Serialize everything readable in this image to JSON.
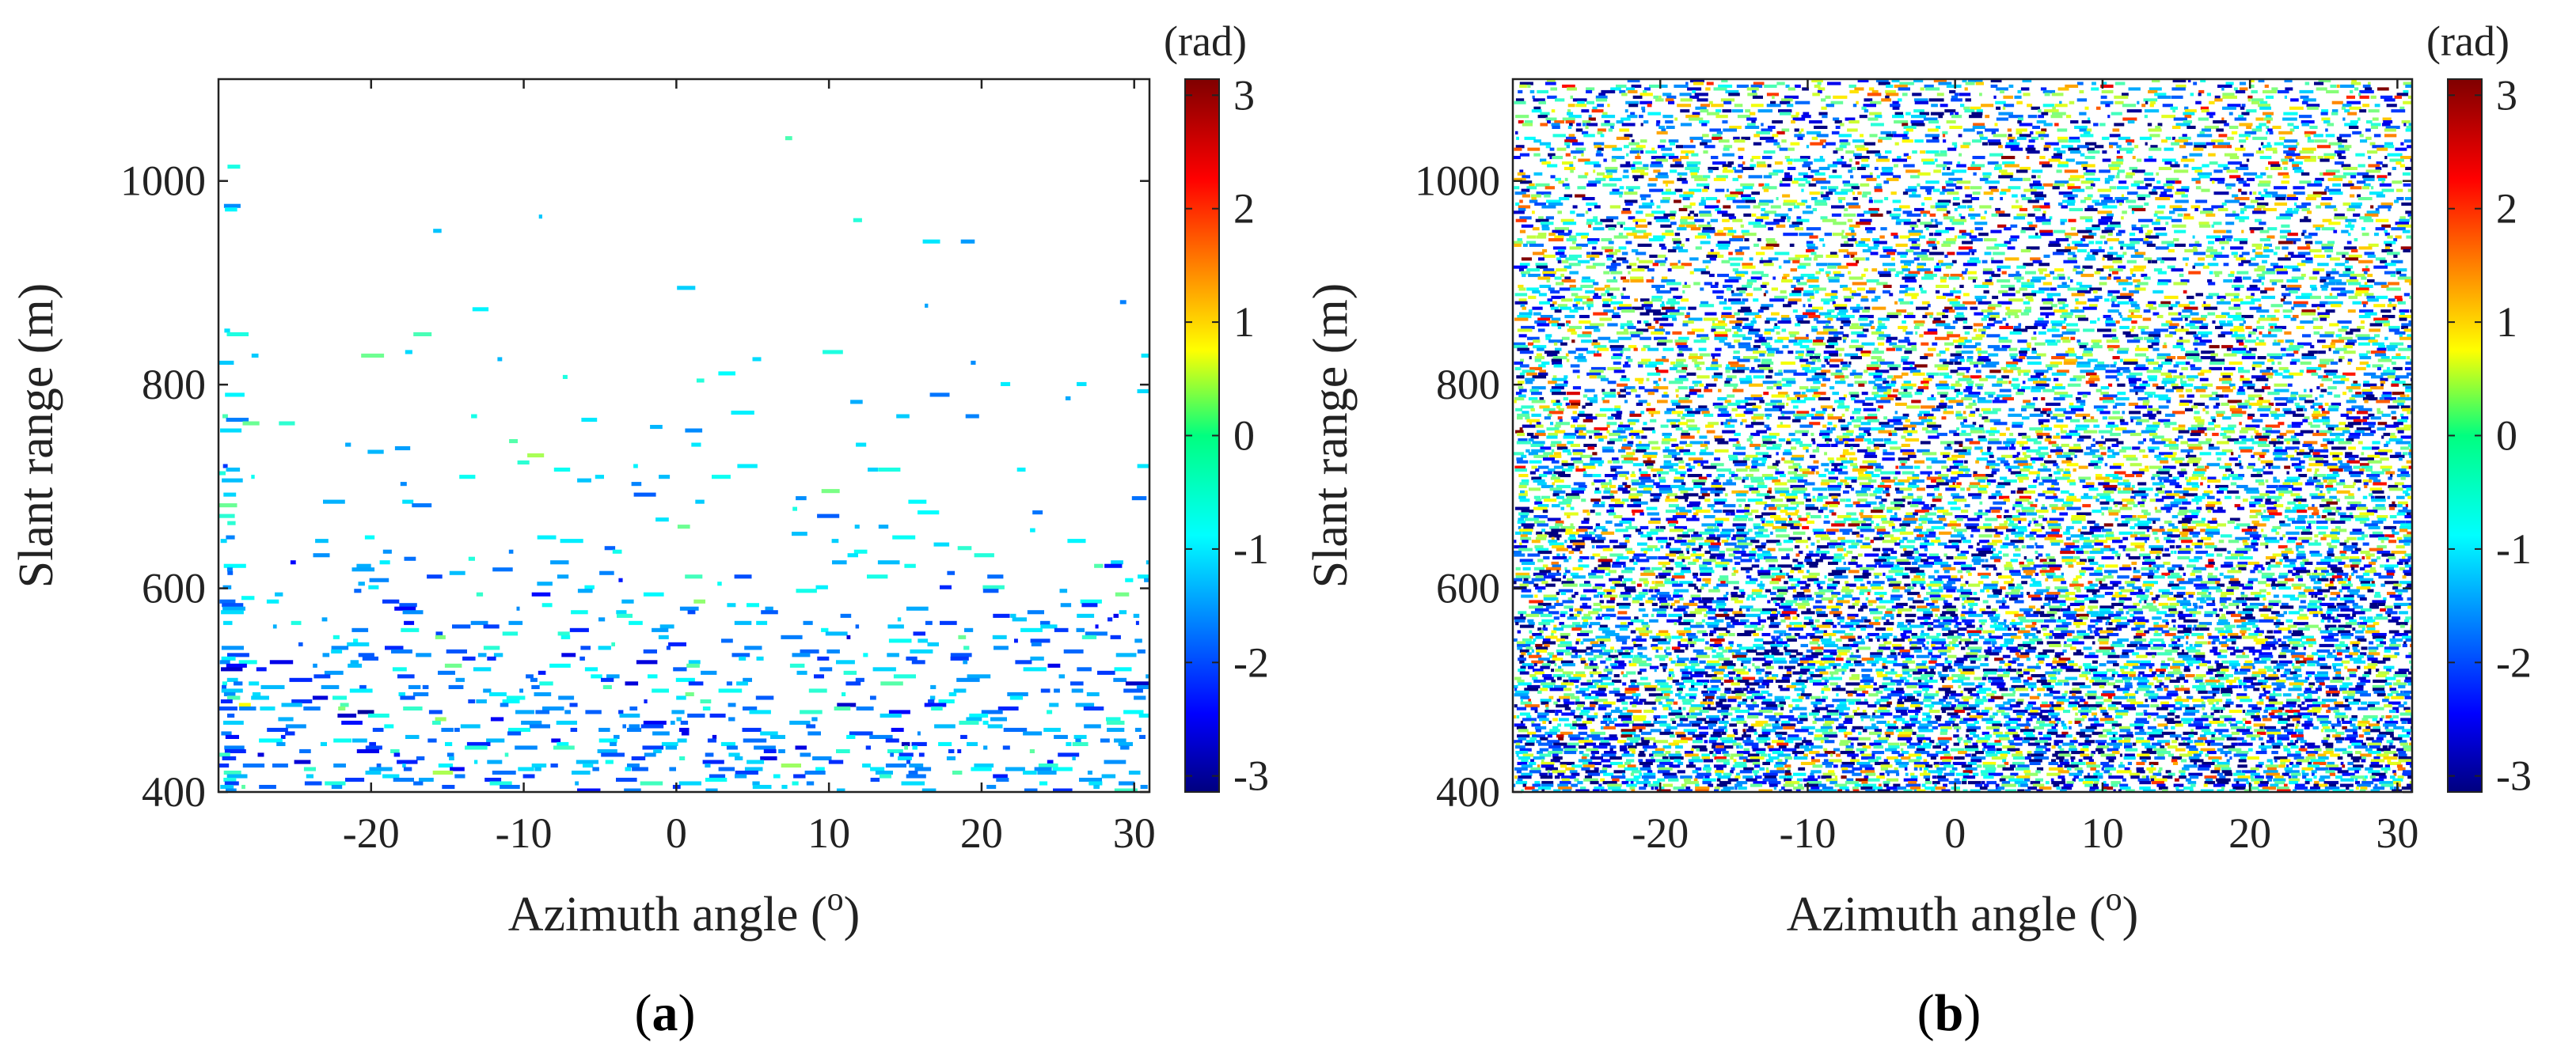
{
  "figure": {
    "panels": [
      "a",
      "b"
    ]
  },
  "chart_data": [
    {
      "type": "heatmap",
      "panel_label": "a",
      "title": "",
      "xlabel": "Azimuth angle",
      "xlabel_unit": "o",
      "ylabel": "Slant range (m)",
      "xlim": [
        -30,
        31
      ],
      "ylim": [
        400,
        1100
      ],
      "xticks": [
        -20,
        -10,
        0,
        10,
        20,
        30
      ],
      "yticks": [
        400,
        600,
        800,
        1000
      ],
      "colorbar": {
        "label": "(rad)",
        "ticks": [
          -3,
          -2,
          -1,
          0,
          1,
          2,
          3
        ],
        "range": [
          -3.14159,
          3.14159
        ],
        "colormap": "jet"
      },
      "density": "sparse",
      "description_values": {
        "typical_phase_rad": -1.0,
        "spread_rad": 0.45,
        "coverage_fraction": 0.22
      }
    },
    {
      "type": "heatmap",
      "panel_label": "b",
      "title": "",
      "xlabel": "Azimuth angle",
      "xlabel_unit": "o",
      "ylabel": "Slant range (m)",
      "xlim": [
        -30,
        31
      ],
      "ylim": [
        400,
        1100
      ],
      "xticks": [
        -20,
        -10,
        0,
        10,
        20,
        30
      ],
      "yticks": [
        400,
        600,
        800,
        1000
      ],
      "colorbar": {
        "label": "(rad)",
        "ticks": [
          -3,
          -2,
          -1,
          0,
          1,
          2,
          3
        ],
        "range": [
          -3.14159,
          3.14159
        ],
        "colormap": "jet"
      },
      "density": "dense",
      "description_values": {
        "typical_phase_rad": -0.8,
        "spread_rad": 1.6,
        "coverage_fraction": 0.72
      }
    }
  ]
}
